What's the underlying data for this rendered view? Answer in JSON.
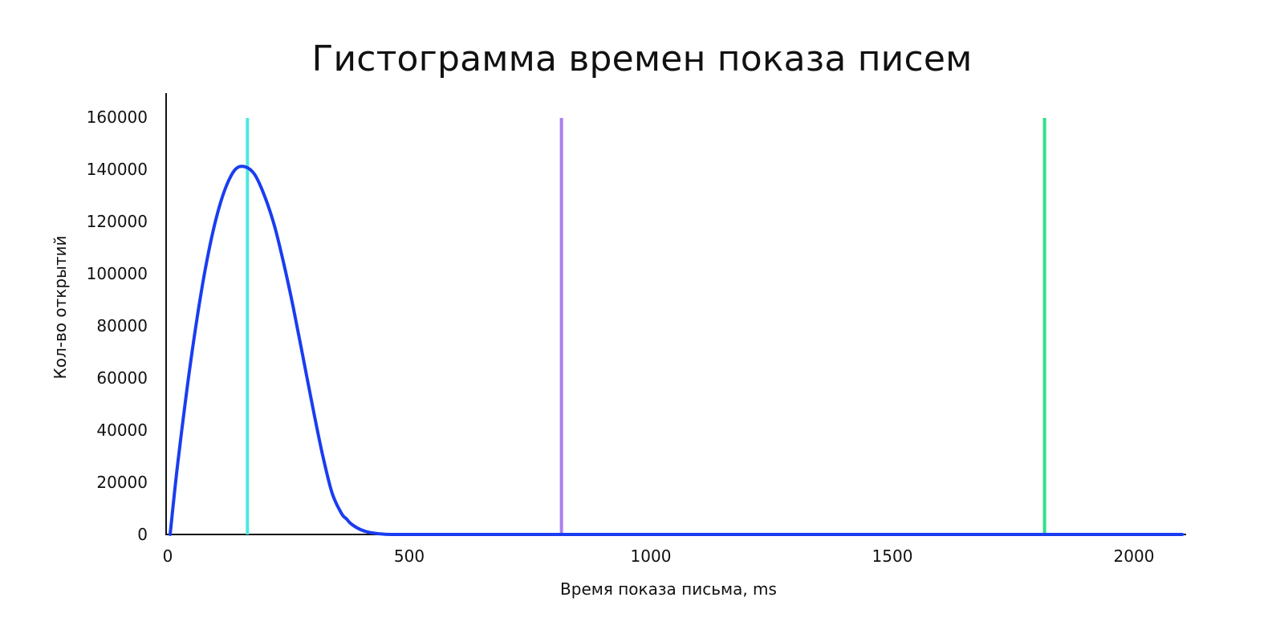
{
  "chart_data": {
    "type": "line",
    "title": "Гистограмма времен показа писем",
    "xlabel": "Время показа письма, ms",
    "ylabel": "Кол-во открытий",
    "xlim": [
      0,
      2100
    ],
    "ylim": [
      0,
      160000
    ],
    "x_ticks": [
      "0",
      "500",
      "1000",
      "1500",
      "2000"
    ],
    "y_ticks": [
      "0",
      "20000",
      "40000",
      "60000",
      "80000",
      "100000",
      "120000",
      "140000",
      "160000"
    ],
    "grid": false,
    "series": [
      {
        "color": "#1a3df0",
        "x": [
          5,
          20,
          40,
          60,
          80,
          100,
          120,
          140,
          160,
          180,
          200,
          220,
          240,
          260,
          280,
          300,
          320,
          340,
          360,
          370,
          380,
          400,
          420,
          450,
          500,
          800,
          1200,
          1600,
          2100
        ],
        "y": [
          0,
          26000,
          56000,
          82000,
          104000,
          121000,
          133000,
          140000,
          141000,
          138000,
          130000,
          119000,
          104000,
          87000,
          68000,
          49000,
          31000,
          16000,
          8000,
          6000,
          4000,
          1800,
          700,
          100,
          0,
          0,
          0,
          0,
          0
        ]
      }
    ],
    "vertical_lines": [
      {
        "x": 165,
        "color": "#4de8e0"
      },
      {
        "x": 815,
        "color": "#a97ff0"
      },
      {
        "x": 1815,
        "color": "#2ee08a"
      }
    ]
  }
}
